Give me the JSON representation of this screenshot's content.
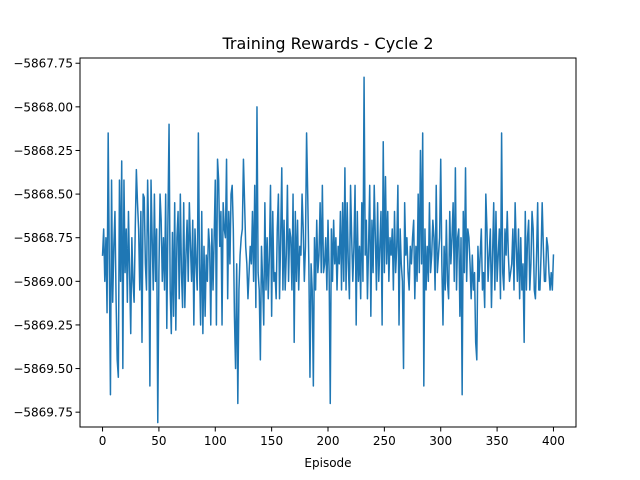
{
  "chart_data": {
    "type": "line",
    "title": "Training Rewards - Cycle 2",
    "xlabel": "Episode",
    "ylabel": "",
    "xlim": [
      -20,
      420
    ],
    "ylim": [
      -5869.835,
      -5867.72
    ],
    "xticks": [
      0,
      50,
      100,
      150,
      200,
      250,
      300,
      350,
      400
    ],
    "xtick_labels": [
      "0",
      "50",
      "100",
      "150",
      "200",
      "250",
      "300",
      "350",
      "400"
    ],
    "yticks": [
      -5867.75,
      -5868.0,
      -5868.25,
      -5868.5,
      -5868.75,
      -5869.0,
      -5869.25,
      -5869.5,
      -5869.75
    ],
    "ytick_labels": [
      "−5867.75",
      "−5868.00",
      "−5868.25",
      "−5868.50",
      "−5868.75",
      "−5869.00",
      "−5869.25",
      "−5869.50",
      "−5869.75"
    ],
    "grid": false,
    "legend": "none",
    "series": [
      {
        "color": "#1f77b4",
        "x_start": 0,
        "x_step": 1,
        "values": [
          -5868.85,
          -5868.7,
          -5869.0,
          -5868.75,
          -5869.18,
          -5868.15,
          -5868.9,
          -5869.65,
          -5868.42,
          -5869.12,
          -5868.8,
          -5868.6,
          -5869.1,
          -5869.45,
          -5869.55,
          -5868.42,
          -5869.0,
          -5868.31,
          -5869.5,
          -5868.42,
          -5868.95,
          -5868.7,
          -5869.12,
          -5868.6,
          -5868.95,
          -5869.3,
          -5868.75,
          -5869.0,
          -5869.12,
          -5868.7,
          -5868.36,
          -5868.55,
          -5868.7,
          -5869.05,
          -5868.6,
          -5869.35,
          -5868.5,
          -5868.52,
          -5868.9,
          -5869.05,
          -5868.42,
          -5868.75,
          -5869.6,
          -5868.42,
          -5868.75,
          -5869.05,
          -5868.5,
          -5869.0,
          -5868.7,
          -5869.81,
          -5868.95,
          -5868.5,
          -5868.65,
          -5869.0,
          -5868.75,
          -5869.05,
          -5868.5,
          -5869.27,
          -5868.65,
          -5868.1,
          -5869.05,
          -5869.3,
          -5868.72,
          -5869.2,
          -5868.55,
          -5869.28,
          -5868.75,
          -5868.6,
          -5869.1,
          -5868.5,
          -5868.95,
          -5869.15,
          -5868.55,
          -5869.15,
          -5868.85,
          -5868.65,
          -5869.0,
          -5868.55,
          -5868.8,
          -5869.0,
          -5868.65,
          -5869.25,
          -5868.7,
          -5868.9,
          -5869.05,
          -5868.15,
          -5868.9,
          -5869.25,
          -5868.6,
          -5869.3,
          -5868.8,
          -5869.2,
          -5868.85,
          -5869.0,
          -5868.7,
          -5868.8,
          -5869.25,
          -5868.7,
          -5869.05,
          -5868.75,
          -5868.42,
          -5869.25,
          -5868.3,
          -5868.42,
          -5868.8,
          -5868.6,
          -5869.25,
          -5868.55,
          -5868.7,
          -5868.75,
          -5868.3,
          -5869.1,
          -5868.6,
          -5868.9,
          -5868.5,
          -5868.45,
          -5868.7,
          -5869.2,
          -5869.5,
          -5868.9,
          -5869.7,
          -5869.05,
          -5868.85,
          -5868.75,
          -5868.7,
          -5868.3,
          -5868.55,
          -5868.8,
          -5868.9,
          -5869.1,
          -5868.95,
          -5868.8,
          -5868.9,
          -5868.6,
          -5869.0,
          -5868.45,
          -5869.15,
          -5868.0,
          -5868.95,
          -5869.05,
          -5869.45,
          -5868.8,
          -5869.0,
          -5869.25,
          -5868.55,
          -5869.05,
          -5868.75,
          -5869.1,
          -5868.85,
          -5868.45,
          -5869.2,
          -5868.6,
          -5869.0,
          -5868.95,
          -5869.1,
          -5868.7,
          -5868.5,
          -5869.1,
          -5868.75,
          -5868.35,
          -5869.05,
          -5868.65,
          -5869.05,
          -5868.85,
          -5868.45,
          -5869.0,
          -5868.7,
          -5868.75,
          -5869.05,
          -5868.5,
          -5869.35,
          -5868.6,
          -5869.0,
          -5868.65,
          -5869.05,
          -5868.8,
          -5868.85,
          -5868.5,
          -5868.7,
          -5869.0,
          -5868.8,
          -5868.15,
          -5868.5,
          -5868.9,
          -5869.55,
          -5868.9,
          -5869.05,
          -5869.6,
          -5868.75,
          -5869.05,
          -5868.65,
          -5868.95,
          -5868.85,
          -5868.55,
          -5868.95,
          -5868.45,
          -5868.95,
          -5868.9,
          -5868.75,
          -5869.05,
          -5868.65,
          -5868.95,
          -5869.7,
          -5868.7,
          -5869.0,
          -5868.65,
          -5868.9,
          -5868.75,
          -5869.05,
          -5868.8,
          -5868.9,
          -5868.6,
          -5869.05,
          -5868.55,
          -5869.0,
          -5868.35,
          -5869.05,
          -5868.55,
          -5868.9,
          -5869.1,
          -5868.45,
          -5868.75,
          -5869.0,
          -5868.8,
          -5868.45,
          -5869.25,
          -5868.6,
          -5869.0,
          -5868.8,
          -5869.1,
          -5868.55,
          -5869.0,
          -5867.83,
          -5868.85,
          -5868.65,
          -5869.1,
          -5868.8,
          -5868.45,
          -5869.2,
          -5868.65,
          -5868.95,
          -5868.45,
          -5868.75,
          -5869.05,
          -5868.55,
          -5869.0,
          -5868.8,
          -5868.6,
          -5869.25,
          -5868.2,
          -5868.95,
          -5868.4,
          -5868.9,
          -5868.6,
          -5869.0,
          -5868.75,
          -5868.85,
          -5868.7,
          -5869.05,
          -5868.6,
          -5868.95,
          -5868.8,
          -5868.45,
          -5869.25,
          -5868.7,
          -5868.9,
          -5869.0,
          -5869.5,
          -5868.55,
          -5868.85,
          -5868.75,
          -5868.95,
          -5869.05,
          -5868.8,
          -5868.9,
          -5868.75,
          -5868.65,
          -5869.1,
          -5868.8,
          -5869.0,
          -5868.5,
          -5868.95,
          -5868.25,
          -5868.9,
          -5868.15,
          -5869.6,
          -5868.7,
          -5869.05,
          -5868.8,
          -5869.0,
          -5868.55,
          -5868.95,
          -5868.85,
          -5868.65,
          -5868.75,
          -5869.05,
          -5868.45,
          -5868.95,
          -5868.85,
          -5868.75,
          -5868.3,
          -5868.9,
          -5869.25,
          -5868.8,
          -5869.05,
          -5868.65,
          -5869.0,
          -5869.1,
          -5868.6,
          -5868.9,
          -5868.75,
          -5868.55,
          -5869.0,
          -5868.35,
          -5869.05,
          -5868.75,
          -5868.7,
          -5869.2,
          -5868.75,
          -5869.65,
          -5868.6,
          -5868.95,
          -5868.35,
          -5869.0,
          -5868.7,
          -5868.75,
          -5868.9,
          -5869.1,
          -5868.85,
          -5869.05,
          -5868.95,
          -5869.35,
          -5869.45,
          -5868.8,
          -5869.0,
          -5868.85,
          -5868.7,
          -5869.05,
          -5868.95,
          -5869.15,
          -5868.5,
          -5868.7,
          -5869.0,
          -5868.85,
          -5868.7,
          -5869.15,
          -5868.85,
          -5868.55,
          -5869.05,
          -5868.6,
          -5869.0,
          -5868.85,
          -5868.7,
          -5869.1,
          -5868.15,
          -5868.95,
          -5869.05,
          -5868.7,
          -5868.85,
          -5868.6,
          -5868.85,
          -5869.0,
          -5868.95,
          -5868.9,
          -5868.7,
          -5869.05,
          -5868.55,
          -5868.8,
          -5869.0,
          -5868.7,
          -5869.1,
          -5868.75,
          -5869.05,
          -5868.9,
          -5869.35,
          -5868.6,
          -5869.05,
          -5868.75,
          -5868.65,
          -5869.05,
          -5868.9,
          -5868.6,
          -5868.7,
          -5869.05,
          -5869.1,
          -5868.85,
          -5868.55,
          -5869.05,
          -5869.05,
          -5868.85,
          -5868.55,
          -5868.8,
          -5869.0,
          -5869.0,
          -5868.75,
          -5868.8,
          -5868.95,
          -5869.05,
          -5868.95,
          -5869.05,
          -5868.85
        ]
      }
    ]
  }
}
